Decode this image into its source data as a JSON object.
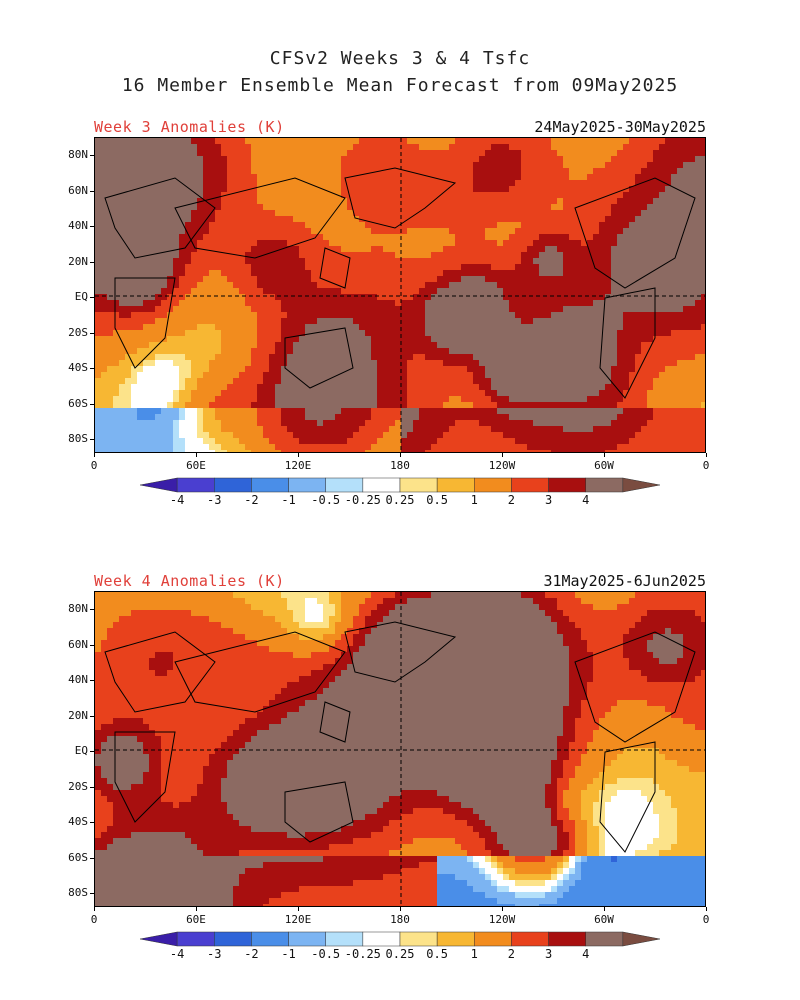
{
  "title_line1": "CFSv2 Weeks 3 & 4 Tsfc",
  "title_line2": "16 Member Ensemble Mean Forecast from 09May2025",
  "panels": [
    {
      "title": "Week 3 Anomalies (K)",
      "dates": "24May2025-30May2025"
    },
    {
      "title": "Week 4 Anomalies (K)",
      "dates": "31May2025-6Jun2025"
    }
  ],
  "lat_labels": [
    "80N",
    "60N",
    "40N",
    "20N",
    "EQ",
    "20S",
    "40S",
    "60S",
    "80S"
  ],
  "lon_labels": [
    "0",
    "60E",
    "120E",
    "180",
    "120W",
    "60W",
    "0"
  ],
  "colorbar": {
    "labels": [
      "-4",
      "-3",
      "-2",
      "-1",
      "-0.5",
      "-0.25",
      "0.25",
      "0.5",
      "1",
      "2",
      "3",
      "4"
    ],
    "colors": [
      "#3a1ea8",
      "#4a3fd0",
      "#2f64d8",
      "#4a8ee8",
      "#7cb4f2",
      "#b4e0fa",
      "#ffffff",
      "#fce38a",
      "#f7b733",
      "#f28c1e",
      "#e8411c",
      "#a80f0f",
      "#8c6a62",
      "#7a4c40"
    ]
  }
}
